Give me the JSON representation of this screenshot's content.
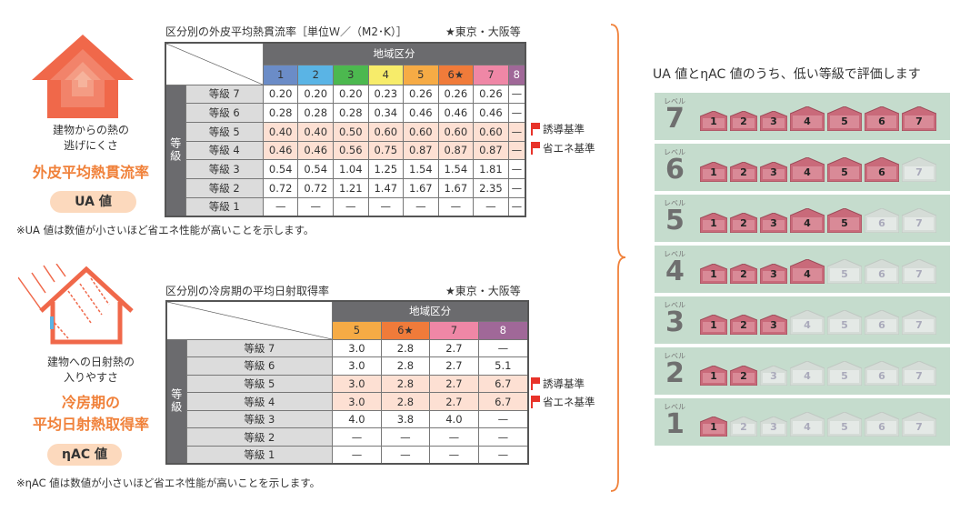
{
  "ua": {
    "icon": "house-heat-icon",
    "desc": [
      "建物からの熱の",
      "逃げにくさ"
    ],
    "title": "外皮平均熱貫流率",
    "pill": "UA 値",
    "table_title": "区分別の外皮平均熱貫流率［単位Ｗ／（M2･K）］",
    "star_note": "★東京・大阪等",
    "region_header": "地域区分",
    "grade_header": "等級",
    "regions": [
      "1",
      "2",
      "3",
      "4",
      "5",
      "6★",
      "7",
      "8"
    ],
    "region_colors": [
      "#6b8cc7",
      "#5ab4e5",
      "#4cb84f",
      "#f7ec6a",
      "#f6ab45",
      "#f07b3a",
      "#ef87a6",
      "#a06898"
    ],
    "rows": [
      {
        "label": "等級 7",
        "values": [
          "0.20",
          "0.20",
          "0.20",
          "0.23",
          "0.26",
          "0.26",
          "0.26",
          "—"
        ]
      },
      {
        "label": "等級 6",
        "values": [
          "0.28",
          "0.28",
          "0.28",
          "0.34",
          "0.46",
          "0.46",
          "0.46",
          "—"
        ]
      },
      {
        "label": "等級 5",
        "values": [
          "0.40",
          "0.40",
          "0.50",
          "0.60",
          "0.60",
          "0.60",
          "0.60",
          "—"
        ],
        "highlight": true
      },
      {
        "label": "等級 4",
        "values": [
          "0.46",
          "0.46",
          "0.56",
          "0.75",
          "0.87",
          "0.87",
          "0.87",
          "—"
        ],
        "highlight": true
      },
      {
        "label": "等級 3",
        "values": [
          "0.54",
          "0.54",
          "1.04",
          "1.25",
          "1.54",
          "1.54",
          "1.81",
          "—"
        ]
      },
      {
        "label": "等級 2",
        "values": [
          "0.72",
          "0.72",
          "1.21",
          "1.47",
          "1.67",
          "1.67",
          "2.35",
          "—"
        ]
      },
      {
        "label": "等級 1",
        "values": [
          "—",
          "—",
          "—",
          "—",
          "—",
          "—",
          "—",
          "—"
        ]
      }
    ],
    "flags": [
      "誘導基準",
      "省エネ基準"
    ],
    "note": "※UA 値は数値が小さいほど省エネ性能が高いことを示します。"
  },
  "eta": {
    "icon": "house-sunlight-icon",
    "desc": [
      "建物への日射熱の",
      "入りやすさ"
    ],
    "title": [
      "冷房期の",
      "平均日射熱取得率"
    ],
    "pill": "ηAC 値",
    "table_title": "区分別の冷房期の平均日射取得率",
    "star_note": "★東京・大阪等",
    "region_header": "地域区分",
    "grade_header": "等級",
    "regions": [
      "5",
      "6★",
      "7",
      "8"
    ],
    "region_colors": [
      "#f6ab45",
      "#f07b3a",
      "#ef87a6",
      "#a06898"
    ],
    "rows": [
      {
        "label": "等級 7",
        "values": [
          "3.0",
          "2.8",
          "2.7",
          "—"
        ]
      },
      {
        "label": "等級 6",
        "values": [
          "3.0",
          "2.8",
          "2.7",
          "5.1"
        ]
      },
      {
        "label": "等級 5",
        "values": [
          "3.0",
          "2.8",
          "2.7",
          "6.7"
        ],
        "highlight": true
      },
      {
        "label": "等級 4",
        "values": [
          "3.0",
          "2.8",
          "2.7",
          "6.7"
        ],
        "highlight": true
      },
      {
        "label": "等級 3",
        "values": [
          "4.0",
          "3.8",
          "4.0",
          "—"
        ]
      },
      {
        "label": "等級 2",
        "values": [
          "—",
          "—",
          "—",
          "—"
        ]
      },
      {
        "label": "等級 1",
        "values": [
          "—",
          "—",
          "—",
          "—"
        ]
      }
    ],
    "flags": [
      "誘導基準",
      "省エネ基準"
    ],
    "note": "※ηAC 値は数値が小さいほど省エネ性能が高いことを示します。"
  },
  "levels": {
    "title": "UA 値とηAC 値のうち、低い等級で評価します",
    "level_label": "レベル",
    "items": [
      7,
      6,
      5,
      4,
      3,
      2,
      1
    ],
    "houses": [
      "1",
      "2",
      "3",
      "4",
      "5",
      "6",
      "7"
    ],
    "active_color": "#c96a7a",
    "inactive_color": "#d5dcd7",
    "panel_color": "#c5dccd"
  }
}
